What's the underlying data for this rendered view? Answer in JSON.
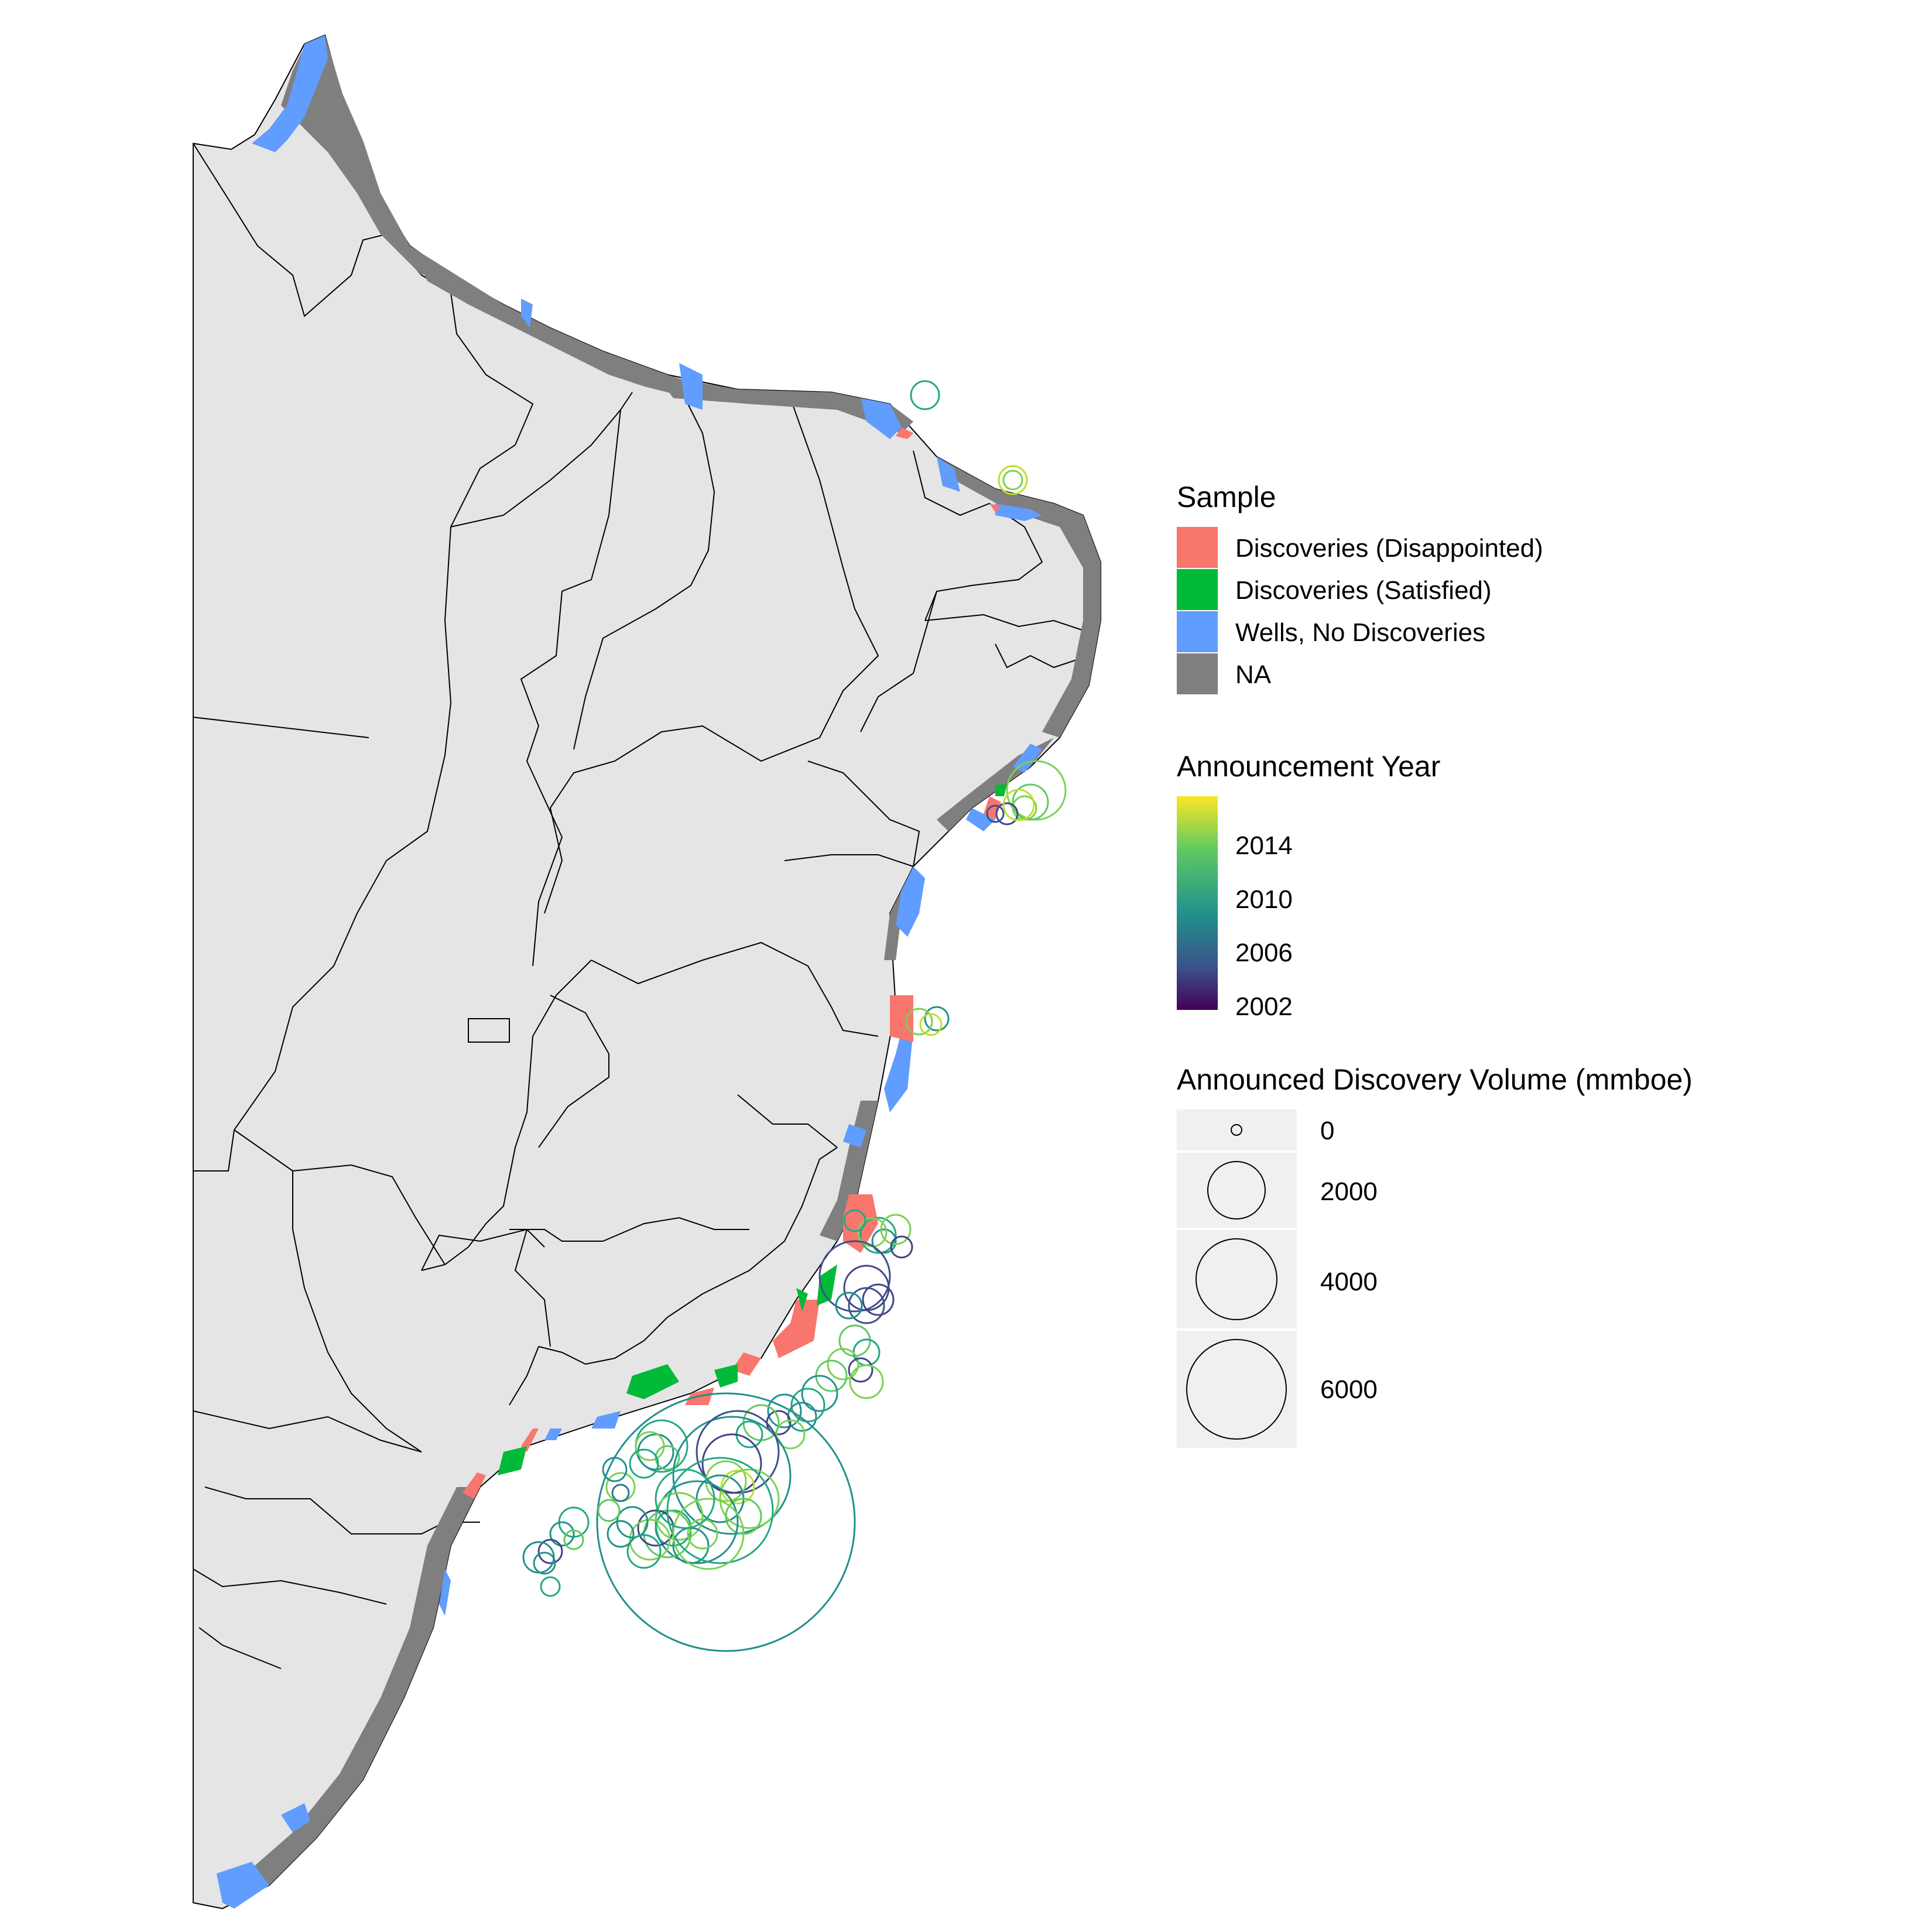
{
  "legend_sample": {
    "title": "Sample",
    "items": [
      {
        "label": "Discoveries (Disappointed)",
        "color": "#f8766d"
      },
      {
        "label": "Discoveries (Satisfied)",
        "color": "#00ba38"
      },
      {
        "label": "Wells, No Discoveries",
        "color": "#619cff"
      },
      {
        "label": "NA",
        "color": "#7f7f7f"
      }
    ]
  },
  "legend_year": {
    "title": "Announcement Year",
    "ticks": [
      "2014",
      "2010",
      "2006",
      "2002"
    ],
    "gradient": [
      "#fde725",
      "#5ec962",
      "#21918c",
      "#3b528b",
      "#440154"
    ]
  },
  "legend_volume": {
    "title": "Announced Discovery Volume (mmboe)",
    "items": [
      "0",
      "2000",
      "4000",
      "6000"
    ]
  },
  "colors": {
    "land": "#e5e5e5",
    "border": "#000000",
    "background": "#ffffff"
  }
}
